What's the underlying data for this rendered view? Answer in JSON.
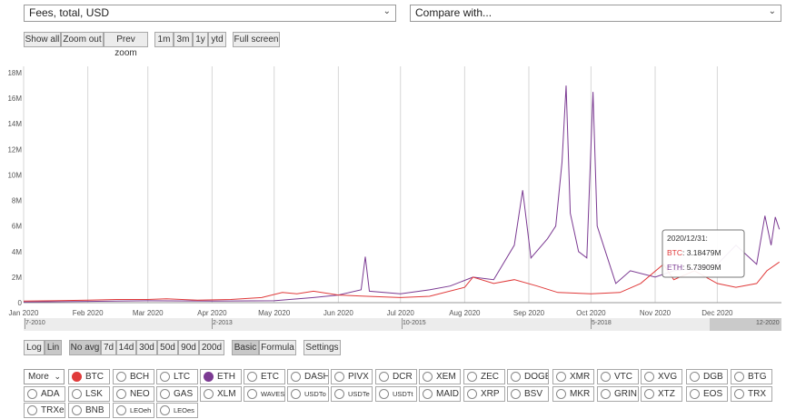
{
  "metric_select": {
    "value": "Fees, total, USD"
  },
  "compare_select": {
    "value": "Compare with..."
  },
  "zoom_buttons": {
    "show_all": "Show all",
    "zoom_out": "Zoom out",
    "prev_zoom": "Prev zoom"
  },
  "range_buttons": [
    "1m",
    "3m",
    "1y",
    "ytd"
  ],
  "full_screen": "Full screen",
  "scale_buttons": {
    "log": "Log",
    "lin": "Lin",
    "selected": "Lin"
  },
  "avg_buttons": [
    "No avg",
    "7d",
    "14d",
    "30d",
    "50d",
    "90d",
    "200d"
  ],
  "avg_selected": "No avg",
  "mode_buttons": {
    "basic": "Basic",
    "formula": "Formula",
    "selected": "Basic"
  },
  "settings_button": "Settings",
  "more_select": "More",
  "coins_row1": [
    "BTC",
    "BCH",
    "LTC",
    "ETH",
    "ETC",
    "DASH",
    "PIVX",
    "DCR",
    "XEM",
    "ZEC",
    "DOGE",
    "XMR",
    "VTC",
    "XVG",
    "DGB",
    "BTG"
  ],
  "coins_row2": [
    "ADA",
    "LSK",
    "NEO",
    "GAS",
    "XLM",
    "WAVES",
    "USDTo",
    "USDTe",
    "USDTt",
    "MAID",
    "XRP",
    "BSV",
    "MKR",
    "GRIN",
    "XTZ",
    "EOS",
    "TRX"
  ],
  "coins_row3": [
    "TRXe",
    "BNB",
    "LEOeh",
    "LEOes"
  ],
  "coin_colors": {
    "BTC": "#e03a3a",
    "ETH": "#7b3a92"
  },
  "navigator": {
    "labels": [
      "7-2010",
      "2-2013",
      "10-2015",
      "5-2018",
      "12-2020"
    ]
  },
  "tooltip": {
    "date": "2020/12/31:",
    "btc_label": "BTC",
    "btc_value": ": 3.18479M",
    "eth_label": "ETH",
    "eth_value": ": 5.73909M"
  },
  "chart_data": {
    "type": "line",
    "x_labels": [
      "Jan 2020",
      "Feb 2020",
      "Mar 2020",
      "Apr 2020",
      "May 2020",
      "Jun 2020",
      "Jul 2020",
      "Aug 2020",
      "Sep 2020",
      "Oct 2020",
      "Nov 2020",
      "Dec 2020"
    ],
    "y_ticks": [
      "0",
      "2M",
      "4M",
      "6M",
      "8M",
      "10M",
      "12M",
      "14M",
      "16M",
      "18M"
    ],
    "ylim": [
      0,
      18.5
    ],
    "y_unit": "M USD",
    "grid": "vertical",
    "series": [
      {
        "name": "BTC",
        "color": "#e03a3a",
        "points": [
          [
            "2020-01-01",
            0.12
          ],
          [
            "2020-01-15",
            0.15
          ],
          [
            "2020-02-01",
            0.2
          ],
          [
            "2020-02-15",
            0.25
          ],
          [
            "2020-03-01",
            0.25
          ],
          [
            "2020-03-10",
            0.3
          ],
          [
            "2020-03-25",
            0.2
          ],
          [
            "2020-04-10",
            0.25
          ],
          [
            "2020-04-25",
            0.4
          ],
          [
            "2020-05-05",
            0.8
          ],
          [
            "2020-05-12",
            0.7
          ],
          [
            "2020-05-20",
            0.9
          ],
          [
            "2020-06-01",
            0.6
          ],
          [
            "2020-06-15",
            0.5
          ],
          [
            "2020-07-01",
            0.4
          ],
          [
            "2020-07-15",
            0.5
          ],
          [
            "2020-08-01",
            1.2
          ],
          [
            "2020-08-05",
            2.0
          ],
          [
            "2020-08-15",
            1.5
          ],
          [
            "2020-08-25",
            1.8
          ],
          [
            "2020-09-05",
            1.3
          ],
          [
            "2020-09-15",
            0.8
          ],
          [
            "2020-10-01",
            0.7
          ],
          [
            "2020-10-15",
            0.8
          ],
          [
            "2020-10-25",
            1.5
          ],
          [
            "2020-11-05",
            3.0
          ],
          [
            "2020-11-10",
            1.8
          ],
          [
            "2020-11-20",
            2.5
          ],
          [
            "2020-12-01",
            1.5
          ],
          [
            "2020-12-10",
            1.2
          ],
          [
            "2020-12-20",
            1.5
          ],
          [
            "2020-12-25",
            2.5
          ],
          [
            "2020-12-31",
            3.18
          ]
        ]
      },
      {
        "name": "ETH",
        "color": "#7b3a92",
        "points": [
          [
            "2020-01-01",
            0.05
          ],
          [
            "2020-02-01",
            0.1
          ],
          [
            "2020-03-01",
            0.15
          ],
          [
            "2020-04-01",
            0.12
          ],
          [
            "2020-05-01",
            0.15
          ],
          [
            "2020-05-20",
            0.4
          ],
          [
            "2020-06-01",
            0.6
          ],
          [
            "2020-06-12",
            1.0
          ],
          [
            "2020-06-14",
            3.6
          ],
          [
            "2020-06-16",
            0.9
          ],
          [
            "2020-07-01",
            0.7
          ],
          [
            "2020-07-15",
            1.0
          ],
          [
            "2020-07-25",
            1.3
          ],
          [
            "2020-08-05",
            2.0
          ],
          [
            "2020-08-15",
            1.8
          ],
          [
            "2020-08-25",
            4.5
          ],
          [
            "2020-08-29",
            8.8
          ],
          [
            "2020-09-02",
            3.5
          ],
          [
            "2020-09-10",
            5.0
          ],
          [
            "2020-09-14",
            6.0
          ],
          [
            "2020-09-17",
            11.0
          ],
          [
            "2020-09-19",
            17.0
          ],
          [
            "2020-09-21",
            7.0
          ],
          [
            "2020-09-25",
            4.0
          ],
          [
            "2020-09-29",
            3.5
          ],
          [
            "2020-10-02",
            16.5
          ],
          [
            "2020-10-04",
            6.0
          ],
          [
            "2020-10-08",
            4.0
          ],
          [
            "2020-10-13",
            1.5
          ],
          [
            "2020-10-20",
            2.5
          ],
          [
            "2020-11-01",
            2.0
          ],
          [
            "2020-11-10",
            2.5
          ],
          [
            "2020-11-20",
            2.7
          ],
          [
            "2020-12-01",
            3.0
          ],
          [
            "2020-12-10",
            4.5
          ],
          [
            "2020-12-20",
            3.0
          ],
          [
            "2020-12-24",
            6.8
          ],
          [
            "2020-12-27",
            4.5
          ],
          [
            "2020-12-29",
            6.7
          ],
          [
            "2020-12-31",
            5.74
          ]
        ]
      }
    ]
  }
}
